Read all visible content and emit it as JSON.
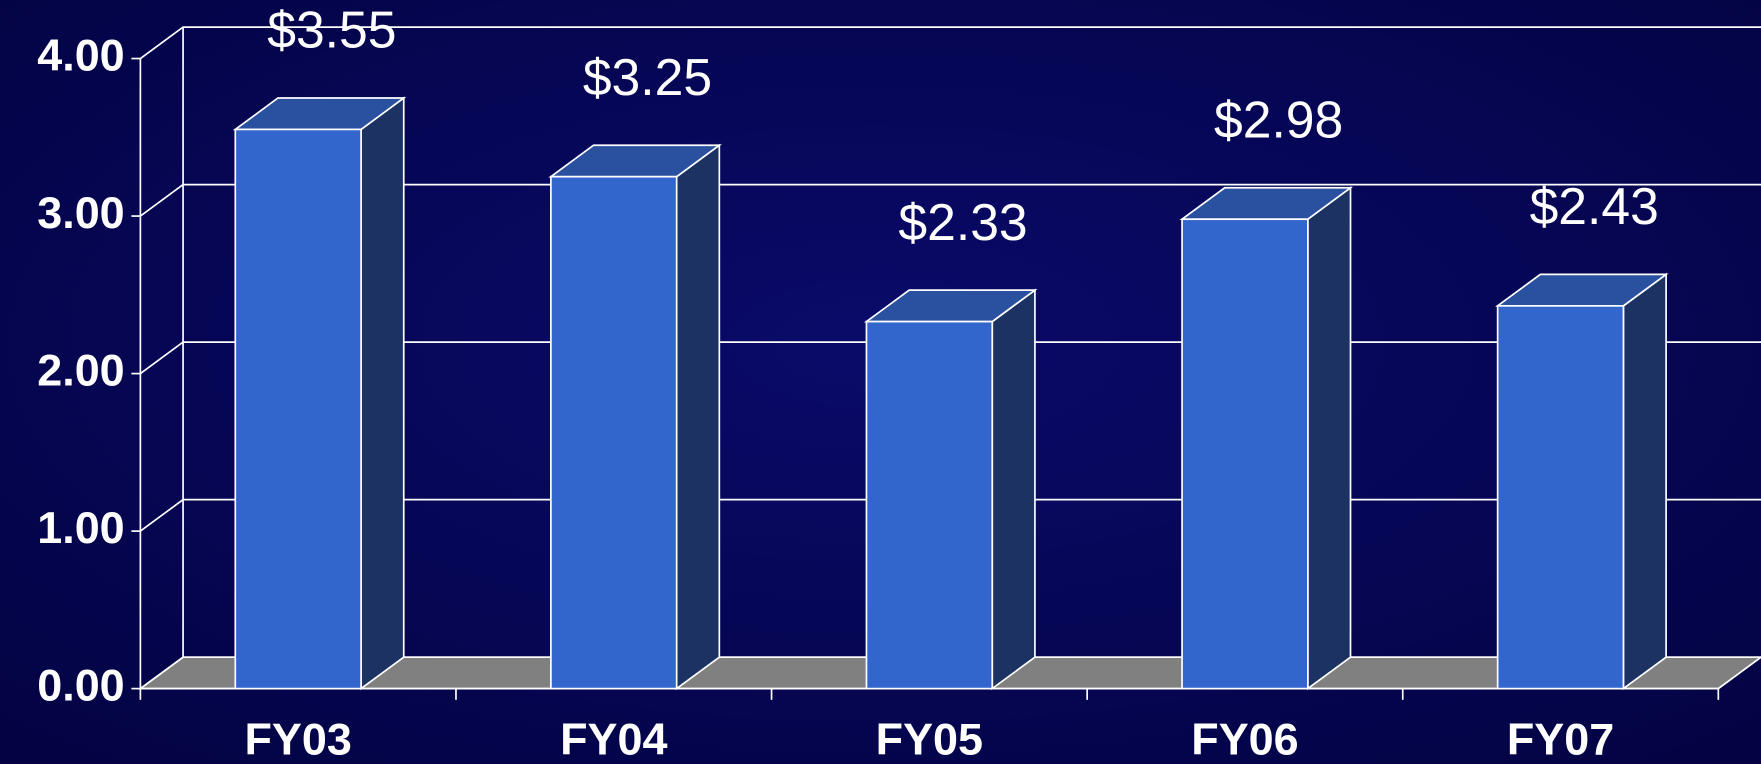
{
  "chart_data": {
    "type": "bar3d",
    "categories": [
      "FY03",
      "FY04",
      "FY05",
      "FY06",
      "FY07"
    ],
    "values": [
      3.55,
      3.25,
      2.33,
      2.98,
      2.43
    ],
    "value_labels": [
      "$3.55",
      "$3.25",
      "$2.33",
      "$2.98",
      "$2.43"
    ],
    "ylim": [
      0,
      4
    ],
    "yticks": [
      {
        "value": 0,
        "label": "0.00"
      },
      {
        "value": 1,
        "label": "1.00"
      },
      {
        "value": 2,
        "label": "2.00"
      },
      {
        "value": 3,
        "label": "3.00"
      },
      {
        "value": 4,
        "label": "4.00"
      }
    ],
    "grid": true,
    "color": "#3366cc"
  }
}
